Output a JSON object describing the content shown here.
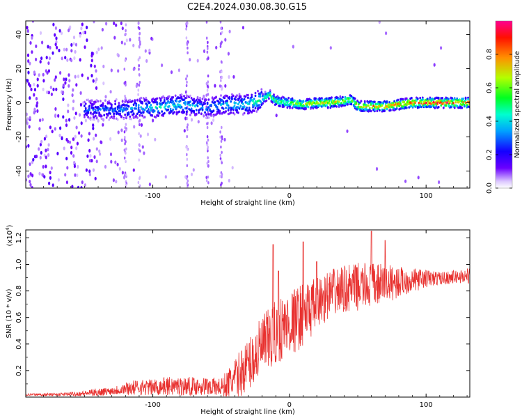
{
  "figure_title": "C2E4.2024.030.08.30.G15",
  "chart_data": [
    {
      "type": "heatmap",
      "title": "C2E4.2024.030.08.30.G15",
      "xlabel": "Height of straight line (km)",
      "ylabel": "Frequency (Hz)",
      "xlim": [
        -193,
        132
      ],
      "ylim": [
        -50,
        48
      ],
      "x_ticks": [
        -100,
        0,
        100
      ],
      "x_tick_labels": [
        "-100",
        "0",
        "100"
      ],
      "y_ticks": [
        -40,
        -20,
        0,
        20,
        40
      ],
      "y_tick_labels": [
        "-40",
        "-20",
        "0",
        "20",
        "40"
      ],
      "colorbar": {
        "label": "Normalized spectral amplitude",
        "range": [
          0,
          1
        ],
        "ticks": [
          0.0,
          0.2,
          0.4,
          0.6,
          0.8
        ],
        "tick_labels": [
          "0.0",
          "0.2",
          "0.4",
          "0.6",
          "0.8"
        ],
        "colormap": [
          "#ffffff",
          "#d8c0ff",
          "#6a00ff",
          "#1400ff",
          "#00c8ff",
          "#00ff40",
          "#c8ff00",
          "#ff8000",
          "#ff0000",
          "#ff0080"
        ]
      },
      "ridge": {
        "x": [
          -150,
          -140,
          -120,
          -110,
          -100,
          -90,
          -80,
          -70,
          -60,
          -50,
          -40,
          -30,
          -20,
          -15,
          -10,
          0,
          10,
          20,
          30,
          40,
          45,
          50,
          60,
          70,
          80,
          90,
          100,
          110,
          120,
          132
        ],
        "frequency": [
          -4,
          -4,
          -4,
          -3,
          -3,
          -2,
          -1,
          -2,
          -3,
          -1,
          -1,
          -1,
          2,
          5,
          1,
          0,
          -1,
          0,
          0,
          1,
          2,
          -2,
          -2,
          -2,
          -1,
          0,
          0,
          0,
          0,
          0
        ],
        "amplitude": [
          0.3,
          0.3,
          0.35,
          0.4,
          0.45,
          0.45,
          0.45,
          0.4,
          0.35,
          0.4,
          0.45,
          0.45,
          0.55,
          0.6,
          0.6,
          0.7,
          0.75,
          0.75,
          0.8,
          0.75,
          0.7,
          0.8,
          0.85,
          0.85,
          0.9,
          0.9,
          0.95,
          0.95,
          0.95,
          0.9
        ]
      }
    },
    {
      "type": "line",
      "xlabel": "Height of straight line (km)",
      "ylabel": "SNR (10 * v/v)",
      "y_multiplier_label": "(x10",
      "y_multiplier_exp": "4",
      "y_multiplier_close": ")",
      "xlim": [
        -193,
        132
      ],
      "ylim": [
        0,
        1.26
      ],
      "x_ticks": [
        -100,
        0,
        100
      ],
      "x_tick_labels": [
        "-100",
        "0",
        "100"
      ],
      "y_ticks": [
        0.2,
        0.4,
        0.6,
        0.8,
        1.0,
        1.2
      ],
      "y_tick_labels": [
        "0.2",
        "0.4",
        "0.6",
        "0.8",
        "1.0",
        "1.2"
      ],
      "series": [
        {
          "color": "#e8312f",
          "x": [
            -193,
            -170,
            -150,
            -140,
            -130,
            -120,
            -110,
            -100,
            -90,
            -80,
            -70,
            -60,
            -50,
            -45,
            -40,
            -35,
            -30,
            -25,
            -20,
            -15,
            -10,
            -5,
            0,
            5,
            10,
            15,
            20,
            25,
            30,
            40,
            50,
            60,
            70,
            80,
            90,
            100,
            110,
            120,
            132
          ],
          "y": [
            0.02,
            0.02,
            0.03,
            0.04,
            0.05,
            0.07,
            0.08,
            0.08,
            0.09,
            0.09,
            0.09,
            0.09,
            0.08,
            0.11,
            0.15,
            0.21,
            0.27,
            0.33,
            0.4,
            0.45,
            0.5,
            0.55,
            0.58,
            0.61,
            0.65,
            0.68,
            0.72,
            0.76,
            0.8,
            0.83,
            0.85,
            0.86,
            0.87,
            0.88,
            0.89,
            0.9,
            0.9,
            0.91,
            0.92
          ],
          "noise": [
            0.01,
            0.01,
            0.02,
            0.03,
            0.03,
            0.05,
            0.06,
            0.06,
            0.07,
            0.07,
            0.07,
            0.07,
            0.07,
            0.12,
            0.15,
            0.18,
            0.2,
            0.22,
            0.24,
            0.25,
            0.25,
            0.25,
            0.25,
            0.25,
            0.24,
            0.22,
            0.2,
            0.19,
            0.18,
            0.18,
            0.18,
            0.17,
            0.15,
            0.12,
            0.09,
            0.07,
            0.05,
            0.05,
            0.06
          ],
          "peaks": [
            [
              -12,
              1.15
            ],
            [
              -8,
              0.95
            ],
            [
              10,
              1.17
            ],
            [
              20,
              1.02
            ],
            [
              60,
              1.25
            ],
            [
              70,
              1.18
            ]
          ]
        }
      ]
    }
  ]
}
